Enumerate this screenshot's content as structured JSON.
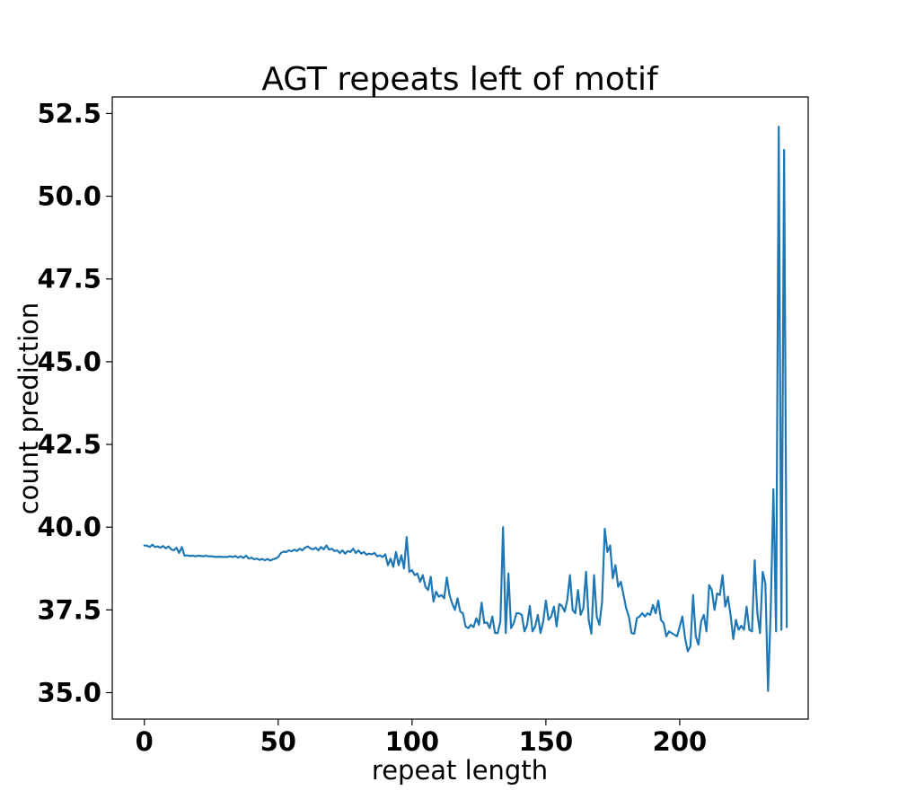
{
  "chart_data": {
    "type": "line",
    "title": "AGT repeats left of motif",
    "xlabel": "repeat length",
    "ylabel": "count prediction",
    "xlim": [
      -12,
      248
    ],
    "ylim": [
      34.2,
      53.0
    ],
    "xticks": [
      0,
      50,
      100,
      150,
      200
    ],
    "xtick_labels": [
      "0",
      "50",
      "100",
      "150",
      "200"
    ],
    "yticks": [
      35.0,
      37.5,
      40.0,
      42.5,
      45.0,
      47.5,
      50.0,
      52.5
    ],
    "ytick_labels": [
      "35.0",
      "37.5",
      "40.0",
      "42.5",
      "45.0",
      "47.5",
      "50.0",
      "52.5"
    ],
    "grid": false,
    "legend": "none",
    "series": [
      {
        "color": "#1f77b4",
        "x_start": 0,
        "x_step": 1,
        "values": [
          39.45,
          39.44,
          39.4,
          39.47,
          39.4,
          39.42,
          39.38,
          39.43,
          39.36,
          39.42,
          39.33,
          39.3,
          39.38,
          39.22,
          39.4,
          39.14,
          39.15,
          39.13,
          39.14,
          39.12,
          39.14,
          39.13,
          39.12,
          39.14,
          39.12,
          39.12,
          39.11,
          39.1,
          39.11,
          39.1,
          39.1,
          39.1,
          39.12,
          39.1,
          39.13,
          39.08,
          39.12,
          39.07,
          39.14,
          39.05,
          39.08,
          39.03,
          39.05,
          39.01,
          39.04,
          39.0,
          39.04,
          38.99,
          39.03,
          39.05,
          39.1,
          39.22,
          39.26,
          39.25,
          39.3,
          39.27,
          39.32,
          39.28,
          39.35,
          39.3,
          39.38,
          39.42,
          39.36,
          39.33,
          39.38,
          39.3,
          39.4,
          39.33,
          39.45,
          39.32,
          39.35,
          39.28,
          39.3,
          39.22,
          39.3,
          39.2,
          39.28,
          39.25,
          39.35,
          39.22,
          39.3,
          39.2,
          39.25,
          39.17,
          39.2,
          39.18,
          39.22,
          39.12,
          39.15,
          39.1,
          39.18,
          38.85,
          39.05,
          38.8,
          39.25,
          38.85,
          39.15,
          38.75,
          39.7,
          38.65,
          38.7,
          38.55,
          38.6,
          38.35,
          38.55,
          38.2,
          38.1,
          38.5,
          37.75,
          38.05,
          37.9,
          37.95,
          37.85,
          38.48,
          37.95,
          37.7,
          37.5,
          37.85,
          37.45,
          37.4,
          37.0,
          36.95,
          37.05,
          36.98,
          37.25,
          37.05,
          37.72,
          37.1,
          37.12,
          36.95,
          37.3,
          36.8,
          36.8,
          37.15,
          40.0,
          36.8,
          38.6,
          36.95,
          37.1,
          37.4,
          37.4,
          37.35,
          36.85,
          37.05,
          37.62,
          36.85,
          37.0,
          37.35,
          36.8,
          37.15,
          37.78,
          37.2,
          37.3,
          37.6,
          37.0,
          37.68,
          37.62,
          37.45,
          37.8,
          38.55,
          37.5,
          37.4,
          38.1,
          37.35,
          37.55,
          38.65,
          37.2,
          36.78,
          38.55,
          37.3,
          37.05,
          37.75,
          39.95,
          39.25,
          39.45,
          38.45,
          38.85,
          38.2,
          38.35,
          37.95,
          37.55,
          37.3,
          36.8,
          36.78,
          37.25,
          37.3,
          37.4,
          37.3,
          37.4,
          37.35,
          37.65,
          37.4,
          37.78,
          37.2,
          37.1,
          36.7,
          36.85,
          36.8,
          36.75,
          36.7,
          37.0,
          37.3,
          36.65,
          36.25,
          36.4,
          37.95,
          36.7,
          36.45,
          37.15,
          37.35,
          36.85,
          38.25,
          38.1,
          37.5,
          38.0,
          37.95,
          38.55,
          37.6,
          37.9,
          37.35,
          36.62,
          37.2,
          36.9,
          37.02,
          36.9,
          37.6,
          36.9,
          36.85,
          39.0,
          37.4,
          36.8,
          38.65,
          38.3,
          35.05,
          37.5,
          41.15,
          36.85,
          52.1,
          36.9,
          51.4,
          36.98
        ]
      }
    ]
  }
}
